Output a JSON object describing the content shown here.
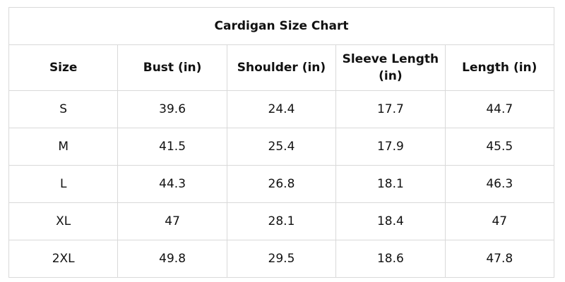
{
  "table": {
    "title": "Cardigan Size Chart",
    "columns": [
      "Size",
      "Bust (in)",
      "Shoulder (in)",
      "Sleeve Length (in)",
      "Length (in)"
    ],
    "rows": [
      [
        "S",
        39.6,
        24.4,
        17.7,
        44.7
      ],
      [
        "M",
        41.5,
        25.4,
        17.9,
        45.5
      ],
      [
        "L",
        44.3,
        26.8,
        18.1,
        46.3
      ],
      [
        "XL",
        47,
        28.1,
        18.4,
        47
      ],
      [
        "2XL",
        49.8,
        29.5,
        18.6,
        47.8
      ]
    ]
  }
}
